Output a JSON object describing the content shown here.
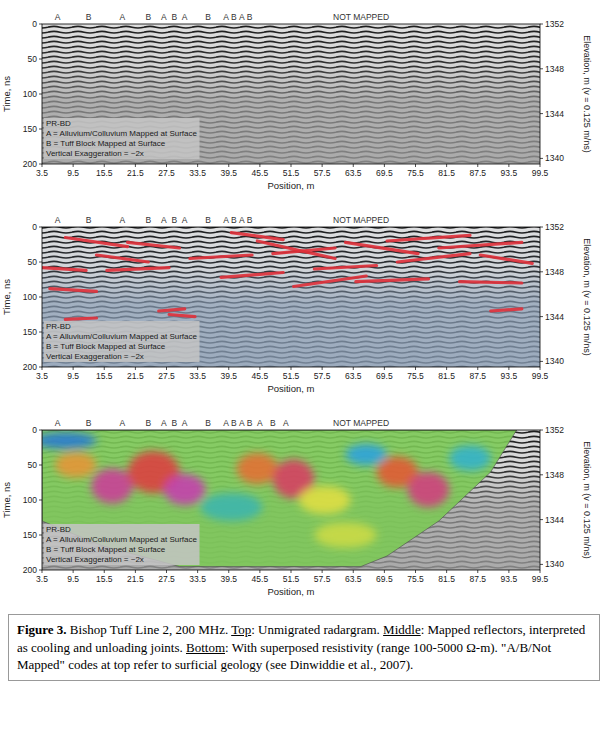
{
  "chart_data": [
    {
      "type": "radargram",
      "x_label": "Position, m",
      "y_label": "Time, ns",
      "y2_label": "Elevation, m (v = 0.125 m/ns)",
      "xlim": [
        3.5,
        99.5
      ],
      "xticks": [
        3.5,
        9.5,
        15.5,
        21.5,
        27.5,
        33.5,
        39.5,
        45.5,
        51.5,
        57.5,
        63.5,
        69.5,
        75.5,
        81.5,
        87.5,
        93.5,
        99.5
      ],
      "ylim": [
        200,
        0
      ],
      "yticks": [
        0,
        50,
        100,
        150,
        200
      ],
      "y2lim": [
        1339.5,
        1352
      ],
      "y2ticks": [
        1352,
        1348,
        1344,
        1340
      ],
      "annotations": [
        {
          "x": 6.5,
          "label": "A"
        },
        {
          "x": 12.5,
          "label": "B"
        },
        {
          "x": 19,
          "label": "A"
        },
        {
          "x": 24,
          "label": "B"
        },
        {
          "x": 27,
          "label": "A"
        },
        {
          "x": 29,
          "label": "B"
        },
        {
          "x": 31,
          "label": "A"
        },
        {
          "x": 35.5,
          "label": "B"
        },
        {
          "x": 39,
          "label": "A"
        },
        {
          "x": 40.5,
          "label": "B"
        },
        {
          "x": 42,
          "label": "A"
        },
        {
          "x": 43.5,
          "label": "B"
        },
        {
          "x": 65,
          "label": "NOT MAPPED"
        }
      ],
      "key": [
        "PR-BD",
        "A = Alluvium/Colluvium Mapped at Surface",
        "B = Tuff Block Mapped at Surface",
        "Vertical Exaggeration = ~2x"
      ]
    },
    {
      "type": "reflector_map",
      "x_label": "Position, m",
      "y_label": "Time, ns",
      "y2_label": "Elevation, m (v = 0.125 m/ns)",
      "xlim": [
        3.5,
        99.5
      ],
      "xticks": [
        3.5,
        9.5,
        15.5,
        21.5,
        27.5,
        33.5,
        39.5,
        45.5,
        51.5,
        57.5,
        63.5,
        69.5,
        75.5,
        81.5,
        87.5,
        93.5,
        99.5
      ],
      "ylim": [
        200,
        0
      ],
      "yticks": [
        0,
        50,
        100,
        150,
        200
      ],
      "y2lim": [
        1339.5,
        1352
      ],
      "y2ticks": [
        1352,
        1348,
        1344,
        1340
      ],
      "annotations": [
        {
          "x": 6.5,
          "label": "A"
        },
        {
          "x": 12.5,
          "label": "B"
        },
        {
          "x": 19,
          "label": "A"
        },
        {
          "x": 24,
          "label": "B"
        },
        {
          "x": 27,
          "label": "A"
        },
        {
          "x": 29,
          "label": "B"
        },
        {
          "x": 31,
          "label": "A"
        },
        {
          "x": 35.5,
          "label": "B"
        },
        {
          "x": 39,
          "label": "A"
        },
        {
          "x": 40.5,
          "label": "B"
        },
        {
          "x": 42,
          "label": "A"
        },
        {
          "x": 43.5,
          "label": "B"
        },
        {
          "x": 65,
          "label": "NOT MAPPED"
        }
      ],
      "key": [
        "PR-BD",
        "A = Alluvium/Colluvium Mapped at Surface",
        "B = Tuff Block Mapped at Surface",
        "Vertical Exaggeration = ~2x"
      ],
      "color": "#e0303a",
      "reflectors": [
        {
          "x": [
            3.5,
            12
          ],
          "t": [
            58,
            62
          ]
        },
        {
          "x": [
            5,
            14
          ],
          "t": [
            88,
            92
          ]
        },
        {
          "x": [
            8,
            14
          ],
          "t": [
            132,
            130
          ]
        },
        {
          "x": [
            14,
            24
          ],
          "t": [
            40,
            50
          ]
        },
        {
          "x": [
            16,
            28
          ],
          "t": [
            62,
            58
          ]
        },
        {
          "x": [
            26,
            31
          ],
          "t": [
            120,
            117
          ]
        },
        {
          "x": [
            28,
            33
          ],
          "t": [
            125,
            128
          ]
        },
        {
          "x": [
            20,
            30
          ],
          "t": [
            22,
            30
          ]
        },
        {
          "x": [
            32,
            44
          ],
          "t": [
            45,
            40
          ]
        },
        {
          "x": [
            38,
            50
          ],
          "t": [
            72,
            65
          ]
        },
        {
          "x": [
            45,
            60
          ],
          "t": [
            20,
            45
          ]
        },
        {
          "x": [
            48,
            60
          ],
          "t": [
            38,
            30
          ]
        },
        {
          "x": [
            52,
            66
          ],
          "t": [
            85,
            70
          ]
        },
        {
          "x": [
            56,
            68
          ],
          "t": [
            60,
            55
          ]
        },
        {
          "x": [
            62,
            76
          ],
          "t": [
            22,
            38
          ]
        },
        {
          "x": [
            64,
            78
          ],
          "t": [
            78,
            74
          ]
        },
        {
          "x": [
            70,
            86
          ],
          "t": [
            20,
            12
          ]
        },
        {
          "x": [
            72,
            86
          ],
          "t": [
            50,
            38
          ]
        },
        {
          "x": [
            80,
            96
          ],
          "t": [
            30,
            22
          ]
        },
        {
          "x": [
            84,
            96
          ],
          "t": [
            78,
            80
          ]
        },
        {
          "x": [
            90,
            96
          ],
          "t": [
            120,
            117
          ]
        },
        {
          "x": [
            8,
            20
          ],
          "t": [
            15,
            28
          ]
        },
        {
          "x": [
            40,
            50
          ],
          "t": [
            8,
            18
          ]
        },
        {
          "x": [
            88,
            98
          ],
          "t": [
            40,
            52
          ]
        }
      ]
    },
    {
      "type": "resistivity_overlay",
      "x_label": "Position, m",
      "y_label": "Time, ns",
      "y2_label": "Elevation, m (v = 0.125 m/ns)",
      "xlim": [
        3.5,
        99.5
      ],
      "xticks": [
        3.5,
        9.5,
        15.5,
        21.5,
        27.5,
        33.5,
        39.5,
        45.5,
        51.5,
        57.5,
        63.5,
        69.5,
        75.5,
        81.5,
        87.5,
        93.5,
        99.5
      ],
      "ylim": [
        200,
        0
      ],
      "yticks": [
        0,
        50,
        100,
        150,
        200
      ],
      "y2lim": [
        1339.5,
        1352
      ],
      "y2ticks": [
        1352,
        1348,
        1344,
        1340
      ],
      "annotations": [
        {
          "x": 6.5,
          "label": "A"
        },
        {
          "x": 12.5,
          "label": "B"
        },
        {
          "x": 19,
          "label": "A"
        },
        {
          "x": 24,
          "label": "B"
        },
        {
          "x": 27,
          "label": "A"
        },
        {
          "x": 29,
          "label": "B"
        },
        {
          "x": 31,
          "label": "A"
        },
        {
          "x": 35.5,
          "label": "B"
        },
        {
          "x": 39,
          "label": "A"
        },
        {
          "x": 40.5,
          "label": "B"
        },
        {
          "x": 42,
          "label": "A"
        },
        {
          "x": 43.5,
          "label": "B"
        },
        {
          "x": 45.5,
          "label": "A"
        },
        {
          "x": 48,
          "label": "B"
        },
        {
          "x": 50.5,
          "label": "A"
        },
        {
          "x": 65,
          "label": "NOT MAPPED"
        }
      ],
      "key": [
        "PR-BD",
        "A = Alluvium/Colluvium Mapped at Surface",
        "B = Tuff Block Mapped at Surface",
        "Vertical Exaggeration = ~2x"
      ],
      "resistivity_range": [
        100,
        5000
      ],
      "background_resistivity": 600,
      "section_outline": {
        "x": [
          3.5,
          95,
          90,
          80,
          70,
          65,
          30,
          15,
          3.5
        ],
        "t": [
          0,
          0,
          60,
          130,
          180,
          195,
          195,
          165,
          130
        ]
      },
      "resistivity_zones": [
        {
          "x": 8,
          "t": 15,
          "rx": 6,
          "rt": 12,
          "value": 150
        },
        {
          "x": 10,
          "t": 50,
          "rx": 4,
          "rt": 18,
          "value": 1500
        },
        {
          "x": 17,
          "t": 80,
          "rx": 4,
          "rt": 25,
          "value": 4000
        },
        {
          "x": 25,
          "t": 60,
          "rx": 5,
          "rt": 30,
          "value": 2500
        },
        {
          "x": 31,
          "t": 85,
          "rx": 4,
          "rt": 22,
          "value": 4500
        },
        {
          "x": 40,
          "t": 110,
          "rx": 6,
          "rt": 20,
          "value": 300
        },
        {
          "x": 45,
          "t": 55,
          "rx": 4,
          "rt": 22,
          "value": 1800
        },
        {
          "x": 52,
          "t": 70,
          "rx": 4,
          "rt": 28,
          "value": 3000
        },
        {
          "x": 58,
          "t": 100,
          "rx": 5,
          "rt": 20,
          "value": 1000
        },
        {
          "x": 62,
          "t": 150,
          "rx": 6,
          "rt": 18,
          "value": 900
        },
        {
          "x": 66,
          "t": 35,
          "rx": 4,
          "rt": 15,
          "value": 200
        },
        {
          "x": 72,
          "t": 60,
          "rx": 4,
          "rt": 22,
          "value": 2000
        },
        {
          "x": 78,
          "t": 85,
          "rx": 4,
          "rt": 25,
          "value": 3500
        },
        {
          "x": 86,
          "t": 40,
          "rx": 4,
          "rt": 18,
          "value": 250
        }
      ]
    }
  ],
  "caption": {
    "segments": [
      {
        "text": "Figure 3.",
        "style": "bold"
      },
      {
        "text": " Bishop Tuff Line 2, 200 MHz. ",
        "style": "plain"
      },
      {
        "text": "Top",
        "style": "underline"
      },
      {
        "text": ": Unmigrated radargram. ",
        "style": "plain"
      },
      {
        "text": "Middle",
        "style": "underline"
      },
      {
        "text": ": Mapped reflectors, interpreted as cooling and unloading joints. ",
        "style": "plain"
      },
      {
        "text": "Bottom",
        "style": "underline"
      },
      {
        "text": ": With superposed resistivity (range 100-5000 Ω-m). \"A/B/Not Mapped\" codes at top refer to surficial geology (see Dinwiddie et al., 2007).",
        "style": "plain"
      }
    ]
  }
}
